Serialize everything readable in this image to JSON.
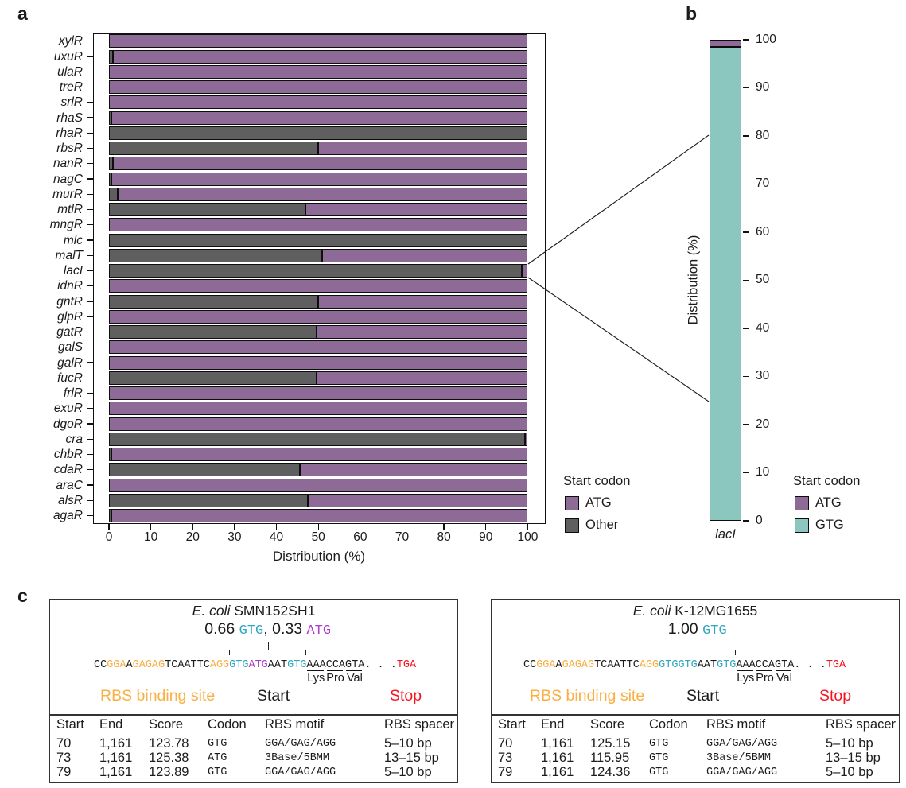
{
  "panels": {
    "a": {
      "label": "a"
    },
    "b": {
      "label": "b"
    },
    "c": {
      "label": "c",
      "boxes": [
        {
          "title": [
            {
              "text": "E. coli",
              "italic": true
            },
            {
              "text": " SMN152SH1",
              "italic": false
            }
          ],
          "ratio": [
            {
              "text": "0.66 ",
              "color": "#1b1b1b",
              "font": "sans"
            },
            {
              "text": "GTG",
              "color": "#2FA6BF",
              "font": "mono"
            },
            {
              "text": ", 0.33 ",
              "color": "#1b1b1b",
              "font": "sans"
            },
            {
              "text": "ATG",
              "color": "#AB3FC6",
              "font": "mono"
            }
          ],
          "sequence": [
            {
              "text": "CC",
              "color": "#1b1b1b"
            },
            {
              "text": "GGA",
              "color": "#F9AF42"
            },
            {
              "text": "A",
              "color": "#1b1b1b"
            },
            {
              "text": "GAGAG",
              "color": "#F9AF42"
            },
            {
              "text": "TCAATTC",
              "color": "#1b1b1b"
            },
            {
              "text": "AGG",
              "color": "#F9AF42"
            },
            {
              "text": "GTG",
              "color": "#2FA6BF"
            },
            {
              "text": "ATG",
              "color": "#AB3FC6"
            },
            {
              "text": "AAT",
              "color": "#1b1b1b"
            },
            {
              "text": "GTG",
              "color": "#2FA6BF"
            },
            {
              "text": "AAA",
              "color": "#1b1b1b",
              "underline": true
            },
            {
              "text": "CCA",
              "color": "#1b1b1b",
              "underline": true
            },
            {
              "text": "GTA",
              "color": "#1b1b1b",
              "underline": true
            },
            {
              "text": ". . .",
              "color": "#1b1b1b"
            },
            {
              "text": "TGA",
              "color": "#F8141E"
            }
          ],
          "amino_labels": [
            "Lys",
            "Pro",
            "Val"
          ],
          "region_labels": [
            {
              "text": "RBS binding site",
              "color": "#F9AF42"
            },
            {
              "text": "Start",
              "color": "#1b1b1b"
            },
            {
              "text": "Stop",
              "color": "#F8141E"
            }
          ],
          "table": {
            "headers": [
              "Start",
              "End",
              "Score",
              "Codon",
              "RBS motif",
              "RBS spacer"
            ],
            "rows": [
              [
                "70",
                "1,161",
                "123.78",
                "GTG",
                "GGA/GAG/AGG",
                "5–10 bp"
              ],
              [
                "73",
                "1,161",
                "125.38",
                "ATG",
                "3Base/5BMM",
                "13–15 bp"
              ],
              [
                "79",
                "1,161",
                "123.89",
                "GTG",
                "GGA/GAG/AGG",
                "5–10 bp"
              ]
            ]
          }
        },
        {
          "title": [
            {
              "text": "E. coli",
              "italic": true
            },
            {
              "text": " K-12MG1655",
              "italic": false
            }
          ],
          "ratio": [
            {
              "text": "1.00 ",
              "color": "#1b1b1b",
              "font": "sans"
            },
            {
              "text": "GTG",
              "color": "#2FA6BF",
              "font": "mono"
            }
          ],
          "sequence": [
            {
              "text": "CC",
              "color": "#1b1b1b"
            },
            {
              "text": "GGA",
              "color": "#F9AF42"
            },
            {
              "text": "A",
              "color": "#1b1b1b"
            },
            {
              "text": "GAGAG",
              "color": "#F9AF42"
            },
            {
              "text": "TCAATTC",
              "color": "#1b1b1b"
            },
            {
              "text": "AGG",
              "color": "#F9AF42"
            },
            {
              "text": "GTGGTG",
              "color": "#2FA6BF"
            },
            {
              "text": "AAT",
              "color": "#1b1b1b"
            },
            {
              "text": "GTG",
              "color": "#2FA6BF"
            },
            {
              "text": "AAA",
              "color": "#1b1b1b",
              "underline": true
            },
            {
              "text": "CCA",
              "color": "#1b1b1b",
              "underline": true
            },
            {
              "text": "GTA",
              "color": "#1b1b1b",
              "underline": true
            },
            {
              "text": ". . .",
              "color": "#1b1b1b"
            },
            {
              "text": "TGA",
              "color": "#F8141E"
            }
          ],
          "amino_labels": [
            "Lys",
            "Pro",
            "Val"
          ],
          "region_labels": [
            {
              "text": "RBS binding site",
              "color": "#F9AF42"
            },
            {
              "text": "Start",
              "color": "#1b1b1b"
            },
            {
              "text": "Stop",
              "color": "#F8141E"
            }
          ],
          "table": {
            "headers": [
              "Start",
              "End",
              "Score",
              "Codon",
              "RBS motif",
              "RBS spacer"
            ],
            "rows": [
              [
                "70",
                "1,161",
                "125.15",
                "GTG",
                "GGA/GAG/AGG",
                "5–10 bp"
              ],
              [
                "73",
                "1,161",
                "115.95",
                "GTG",
                "3Base/5BMM",
                "13–15 bp"
              ],
              [
                "79",
                "1,161",
                "124.36",
                "GTG",
                "GGA/GAG/AGG",
                "5–10 bp"
              ]
            ]
          }
        }
      ]
    }
  },
  "chart_data": [
    {
      "id": "a",
      "type": "bar",
      "orientation": "horizontal",
      "stacked": true,
      "stack_order": "left-to-right",
      "xlabel": "Distribution (%)",
      "xlim": [
        0,
        100
      ],
      "xticks": [
        0,
        10,
        20,
        30,
        40,
        50,
        60,
        70,
        80,
        90,
        100
      ],
      "categories": [
        "xylR",
        "uxuR",
        "ulaR",
        "treR",
        "srlR",
        "rhaS",
        "rhaR",
        "rbsR",
        "nanR",
        "nagC",
        "murR",
        "mtlR",
        "mngR",
        "mlc",
        "malT",
        "lacI",
        "idnR",
        "gntR",
        "glpR",
        "gatR",
        "galS",
        "galR",
        "fucR",
        "frlR",
        "exuR",
        "dgoR",
        "cra",
        "chbR",
        "cdaR",
        "araC",
        "alsR",
        "agaR"
      ],
      "series": [
        {
          "name": "Other",
          "color": "#5F5F5F",
          "values": [
            0,
            1,
            0,
            0,
            0,
            0.5,
            100,
            50,
            1,
            0.5,
            2,
            47,
            0,
            100,
            51,
            98.5,
            0,
            50,
            0,
            49.5,
            0,
            0,
            49.5,
            0,
            0,
            0,
            99.3,
            0.5,
            45.5,
            0,
            47.5,
            0.5
          ]
        },
        {
          "name": "ATG",
          "color": "#8D6B96",
          "values": [
            100,
            99,
            100,
            100,
            100,
            99.5,
            0,
            50,
            99,
            99.5,
            98,
            53,
            100,
            0,
            49,
            1.5,
            100,
            50,
            100,
            50.5,
            100,
            100,
            50.5,
            100,
            100,
            100,
            0.7,
            99.5,
            54.5,
            100,
            52.5,
            99.5
          ]
        }
      ],
      "legend": {
        "title": "Start codon",
        "position": "right-bottom",
        "items": [
          {
            "label": "ATG",
            "color": "#8D6B96"
          },
          {
            "label": "Other",
            "color": "#5F5F5F"
          }
        ]
      }
    },
    {
      "id": "b",
      "type": "bar",
      "orientation": "vertical",
      "stacked": true,
      "stack_order": "bottom-to-top",
      "ylabel": "Distribution (%)",
      "ylim": [
        0,
        100
      ],
      "yticks": [
        0,
        10,
        20,
        30,
        40,
        50,
        60,
        70,
        80,
        90,
        100
      ],
      "categories": [
        "lacI"
      ],
      "series": [
        {
          "name": "GTG",
          "color": "#8BC6BF",
          "values": [
            98.5
          ]
        },
        {
          "name": "ATG",
          "color": "#8D6B96",
          "values": [
            1.5
          ]
        }
      ],
      "legend": {
        "title": "Start codon",
        "position": "right-bottom",
        "items": [
          {
            "label": "ATG",
            "color": "#8D6B96"
          },
          {
            "label": "GTG",
            "color": "#8BC6BF"
          }
        ]
      }
    }
  ],
  "colors": {
    "atg_bar": "#8D6B96",
    "other_bar": "#5F5F5F",
    "gtg_bar": "#8BC6BF",
    "teal_text": "#2FA6BF",
    "magenta_text": "#AB3FC6",
    "orange_text": "#F9AF42",
    "red_text": "#F8141E",
    "ink": "#1b1b1b"
  }
}
